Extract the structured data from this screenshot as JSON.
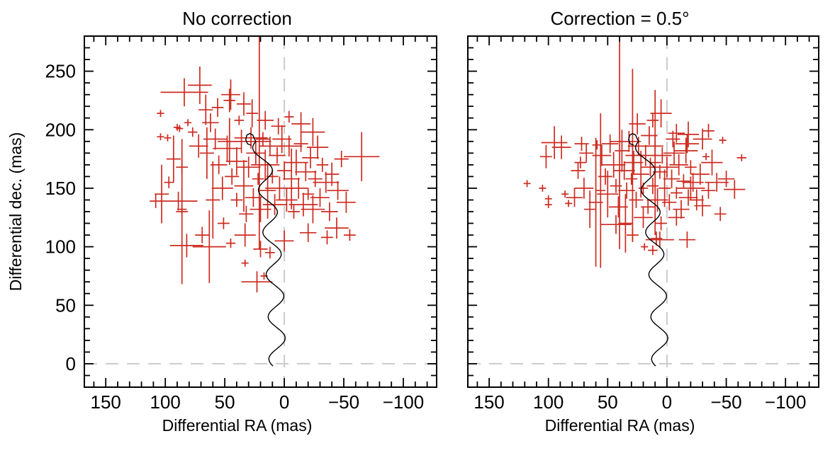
{
  "figure": {
    "background": "#ffffff",
    "marker_color": "#cd2b20",
    "refline_color": "#cbcbcb",
    "curve_color": "#000000",
    "axis_color": "#000000"
  },
  "chart_data": [
    {
      "type": "scatter",
      "title": "No correction",
      "xlabel": "Differential RA (mas)",
      "ylabel": "Differential dec. (mas)",
      "xlim": [
        168,
        -128
      ],
      "ylim": [
        -20,
        280
      ],
      "x_ticks": {
        "values": [
          150,
          100,
          50,
          0,
          -50,
          -100
        ],
        "labels": [
          "150",
          "100",
          "50",
          "0",
          "−50",
          "−100"
        ],
        "minor_step": 10
      },
      "y_ticks": {
        "values": [
          0,
          50,
          100,
          150,
          200,
          250
        ],
        "labels": [
          "0",
          "50",
          "100",
          "150",
          "200",
          "250"
        ],
        "minor_step": 10
      },
      "show_y_tick_labels": true,
      "reflines": {
        "x": 0,
        "y": 0,
        "style": "dashed"
      },
      "model_curve": {
        "y_range": [
          -2,
          190
        ],
        "center_base": 6,
        "center_quad": 0.0004,
        "amplitude": 7,
        "period": 36,
        "phase_ref": 40,
        "top_hook": [
          [
            25.2,
            192.5
          ],
          [
            26.5,
            195.5
          ],
          [
            29,
            196.8
          ],
          [
            31.5,
            195.3
          ],
          [
            32.4,
            191.5
          ],
          [
            31,
            188
          ],
          [
            28,
            186.8
          ]
        ]
      },
      "points_format": [
        "ra_mas",
        "dec_mas",
        "err_ra_mas",
        "err_dec_mas"
      ],
      "points": [
        [
          84,
          232,
          20,
          12
        ],
        [
          71,
          238,
          10,
          16
        ],
        [
          45,
          230,
          8,
          13
        ],
        [
          34,
          222,
          6,
          10
        ],
        [
          56,
          219,
          5,
          8
        ],
        [
          27,
          214,
          5,
          12
        ],
        [
          104,
          214,
          3,
          3
        ],
        [
          81,
          206,
          3,
          3
        ],
        [
          90,
          202,
          3,
          3
        ],
        [
          77,
          198,
          4,
          4
        ],
        [
          104,
          194,
          3,
          3
        ],
        [
          98,
          193,
          3,
          3
        ],
        [
          88,
          201,
          3,
          3
        ],
        [
          66,
          217,
          6,
          13
        ],
        [
          62,
          206,
          7,
          8
        ],
        [
          46,
          225,
          5,
          10
        ],
        [
          38,
          208,
          4,
          4
        ],
        [
          16,
          208,
          7,
          8
        ],
        [
          5,
          203,
          6,
          7
        ],
        [
          -4,
          211,
          4,
          5
        ],
        [
          -14,
          205,
          8,
          10
        ],
        [
          -24,
          198,
          10,
          12
        ],
        [
          93,
          175,
          6,
          20
        ],
        [
          86,
          168,
          5,
          6
        ],
        [
          97,
          155,
          4,
          5
        ],
        [
          89,
          139,
          16,
          8
        ],
        [
          86,
          132,
          4,
          4
        ],
        [
          108,
          139,
          5,
          6
        ],
        [
          103,
          145,
          6,
          25
        ],
        [
          72,
          186,
          8,
          10
        ],
        [
          65,
          180,
          6,
          22
        ],
        [
          58,
          192,
          10,
          9
        ],
        [
          55,
          170,
          7,
          8
        ],
        [
          60,
          140,
          6,
          33
        ],
        [
          52,
          150,
          9,
          10
        ],
        [
          48,
          184,
          12,
          11
        ],
        [
          21,
          190,
          10,
          92
        ],
        [
          46,
          190,
          10,
          20
        ],
        [
          44,
          160,
          6,
          7
        ],
        [
          40,
          173,
          9,
          12
        ],
        [
          40,
          140,
          5,
          6
        ],
        [
          36,
          190,
          12,
          10
        ],
        [
          34,
          152,
          8,
          22
        ],
        [
          32,
          128,
          6,
          7
        ],
        [
          30,
          168,
          10,
          9
        ],
        [
          28,
          193,
          14,
          9
        ],
        [
          26,
          142,
          7,
          8
        ],
        [
          24,
          180,
          8,
          10
        ],
        [
          22,
          158,
          5,
          5
        ],
        [
          20,
          132,
          9,
          11
        ],
        [
          18,
          192,
          6,
          6
        ],
        [
          16,
          170,
          12,
          13
        ],
        [
          14,
          148,
          7,
          24
        ],
        [
          12,
          186,
          9,
          8
        ],
        [
          10,
          160,
          5,
          6
        ],
        [
          8,
          136,
          10,
          9
        ],
        [
          6,
          178,
          7,
          7
        ],
        [
          4,
          150,
          12,
          10
        ],
        [
          2,
          192,
          8,
          12
        ],
        [
          0,
          165,
          6,
          8
        ],
        [
          -2,
          140,
          9,
          10
        ],
        [
          -4,
          186,
          11,
          9
        ],
        [
          -6,
          158,
          7,
          26
        ],
        [
          -8,
          130,
          5,
          6
        ],
        [
          -10,
          172,
          10,
          11
        ],
        [
          -12,
          150,
          8,
          9
        ],
        [
          -14,
          188,
          6,
          7
        ],
        [
          -16,
          136,
          12,
          10
        ],
        [
          -18,
          164,
          9,
          8
        ],
        [
          -20,
          145,
          5,
          5
        ],
        [
          -22,
          176,
          7,
          9
        ],
        [
          -24,
          132,
          10,
          12
        ],
        [
          -26,
          158,
          6,
          7
        ],
        [
          -28,
          185,
          9,
          10
        ],
        [
          -30,
          142,
          8,
          8
        ],
        [
          -32,
          170,
          5,
          6
        ],
        [
          -35,
          155,
          11,
          9
        ],
        [
          -38,
          130,
          7,
          8
        ],
        [
          -40,
          162,
          6,
          10
        ],
        [
          -45,
          148,
          9,
          8
        ],
        [
          -48,
          175,
          6,
          7
        ],
        [
          -52,
          138,
          8,
          9
        ],
        [
          -65,
          177,
          15,
          21
        ],
        [
          -55,
          110,
          5,
          5
        ],
        [
          -44,
          116,
          10,
          9
        ],
        [
          86,
          130,
          5,
          62
        ],
        [
          63,
          100,
          14,
          31
        ],
        [
          45,
          103,
          4,
          4
        ],
        [
          33,
          86,
          3,
          3
        ],
        [
          23,
          70,
          13,
          9
        ],
        [
          17,
          75,
          3,
          3
        ],
        [
          51,
          120,
          5,
          5
        ],
        [
          69,
          110,
          6,
          7
        ],
        [
          82,
          101,
          14,
          10
        ],
        [
          20,
          98,
          6,
          7
        ],
        [
          0,
          105,
          8,
          9
        ],
        [
          -20,
          112,
          7,
          8
        ],
        [
          -36,
          108,
          5,
          6
        ],
        [
          12,
          95,
          4,
          5
        ],
        [
          33,
          110,
          9,
          10
        ]
      ]
    },
    {
      "type": "scatter",
      "title": "Correction = 0.5°",
      "xlabel": "Differential RA (mas)",
      "ylabel": "Differential dec. (mas)",
      "xlim": [
        168,
        -128
      ],
      "ylim": [
        -20,
        280
      ],
      "x_ticks": {
        "values": [
          150,
          100,
          50,
          0,
          -50,
          -100
        ],
        "labels": [
          "150",
          "100",
          "50",
          "0",
          "−50",
          "−100"
        ],
        "minor_step": 10
      },
      "y_ticks": {
        "values": [
          0,
          50,
          100,
          150,
          200,
          250
        ],
        "labels": [
          "0",
          "50",
          "100",
          "150",
          "200",
          "250"
        ],
        "minor_step": 10
      },
      "show_y_tick_labels": false,
      "reflines": {
        "x": 0,
        "y": 0,
        "style": "dashed"
      },
      "model_curve": {
        "y_range": [
          -2,
          190
        ],
        "center_base": 6,
        "center_quad": 0.0004,
        "amplitude": 7,
        "period": 36,
        "phase_ref": 40,
        "top_hook": [
          [
            25.2,
            192.5
          ],
          [
            26.5,
            195.5
          ],
          [
            29,
            196.8
          ],
          [
            31.5,
            195.3
          ],
          [
            32.4,
            191.5
          ],
          [
            31,
            188
          ],
          [
            28,
            186.8
          ]
        ]
      },
      "points_format": [
        "ra_mas",
        "dec_mas",
        "err_ra_mas",
        "err_dec_mas"
      ],
      "points": [
        [
          40,
          190,
          8,
          92
        ],
        [
          29,
          178,
          6,
          74
        ],
        [
          10,
          172,
          5,
          62
        ],
        [
          60,
          138,
          6,
          55
        ],
        [
          56,
          148,
          4,
          66
        ],
        [
          95,
          189,
          11,
          14
        ],
        [
          89,
          185,
          8,
          10
        ],
        [
          102,
          177,
          5,
          10
        ],
        [
          68,
          180,
          6,
          8
        ],
        [
          59,
          187,
          4,
          4
        ],
        [
          118,
          154,
          3,
          3
        ],
        [
          105,
          150,
          3,
          3
        ],
        [
          100,
          141,
          3,
          3
        ],
        [
          100,
          136,
          3,
          3
        ],
        [
          86,
          145,
          3,
          3
        ],
        [
          83,
          137,
          3,
          3
        ],
        [
          -63,
          176,
          4,
          3
        ],
        [
          -33,
          177,
          3,
          3
        ],
        [
          -47,
          191,
          3,
          3
        ],
        [
          5,
          214,
          9,
          12
        ],
        [
          -8,
          197,
          7,
          8
        ],
        [
          25,
          205,
          7,
          9
        ],
        [
          12,
          208,
          5,
          6
        ],
        [
          -18,
          196,
          9,
          11
        ],
        [
          -30,
          192,
          8,
          9
        ],
        [
          -35,
          199,
          5,
          6
        ],
        [
          15,
          195,
          7,
          8
        ],
        [
          -5,
          192,
          6,
          7
        ],
        [
          -17,
          188,
          10,
          8
        ],
        [
          -20,
          150,
          12,
          10
        ],
        [
          -28,
          162,
          8,
          9
        ],
        [
          -35,
          148,
          6,
          7
        ],
        [
          -42,
          155,
          10,
          8
        ],
        [
          -30,
          135,
          7,
          9
        ],
        [
          -45,
          128,
          5,
          6
        ],
        [
          -38,
          172,
          9,
          11
        ],
        [
          -50,
          158,
          7,
          7
        ],
        [
          -57,
          149,
          9,
          8
        ],
        [
          55,
          178,
          8,
          9
        ],
        [
          52,
          160,
          6,
          7
        ],
        [
          50,
          145,
          9,
          20
        ],
        [
          48,
          188,
          7,
          8
        ],
        [
          45,
          170,
          10,
          11
        ],
        [
          43,
          152,
          5,
          6
        ],
        [
          41,
          134,
          8,
          9
        ],
        [
          38,
          182,
          6,
          18
        ],
        [
          36,
          165,
          9,
          8
        ],
        [
          34,
          148,
          7,
          7
        ],
        [
          32,
          190,
          10,
          9
        ],
        [
          30,
          158,
          5,
          5
        ],
        [
          28,
          172,
          8,
          10
        ],
        [
          26,
          140,
          6,
          7
        ],
        [
          24,
          186,
          9,
          8
        ],
        [
          22,
          162,
          7,
          20
        ],
        [
          20,
          150,
          4,
          5
        ],
        [
          18,
          178,
          10,
          9
        ],
        [
          16,
          134,
          6,
          6
        ],
        [
          14,
          168,
          8,
          8
        ],
        [
          12,
          152,
          5,
          7
        ],
        [
          10,
          186,
          7,
          9
        ],
        [
          8,
          140,
          9,
          10
        ],
        [
          6,
          164,
          6,
          6
        ],
        [
          4,
          178,
          8,
          7
        ],
        [
          2,
          150,
          5,
          16
        ],
        [
          0,
          168,
          10,
          9
        ],
        [
          -2,
          138,
          6,
          7
        ],
        [
          -4,
          158,
          7,
          8
        ],
        [
          -6,
          180,
          9,
          10
        ],
        [
          -8,
          146,
          5,
          5
        ],
        [
          -10,
          170,
          8,
          9
        ],
        [
          -12,
          132,
          7,
          8
        ],
        [
          -14,
          156,
          6,
          6
        ],
        [
          -16,
          182,
          10,
          11
        ],
        [
          -18,
          142,
          8,
          7
        ],
        [
          -20,
          168,
          5,
          6
        ],
        [
          -22,
          155,
          9,
          8
        ],
        [
          -25,
          140,
          6,
          9
        ],
        [
          -8,
          125,
          7,
          7
        ],
        [
          5,
          120,
          5,
          6
        ],
        [
          20,
          125,
          8,
          9
        ],
        [
          35,
          120,
          6,
          25
        ],
        [
          75,
          165,
          6,
          7
        ],
        [
          70,
          150,
          8,
          9
        ],
        [
          73,
          172,
          5,
          5
        ],
        [
          78,
          142,
          7,
          8
        ],
        [
          65,
          132,
          5,
          16
        ],
        [
          72,
          188,
          6,
          6
        ],
        [
          19,
          100,
          3,
          3
        ],
        [
          12,
          97,
          4,
          4
        ],
        [
          9,
          107,
          5,
          6
        ],
        [
          6,
          106,
          12,
          7
        ],
        [
          43,
          119,
          13,
          8
        ],
        [
          -17,
          106,
          7,
          7
        ],
        [
          29,
          110,
          5,
          5
        ]
      ]
    }
  ]
}
